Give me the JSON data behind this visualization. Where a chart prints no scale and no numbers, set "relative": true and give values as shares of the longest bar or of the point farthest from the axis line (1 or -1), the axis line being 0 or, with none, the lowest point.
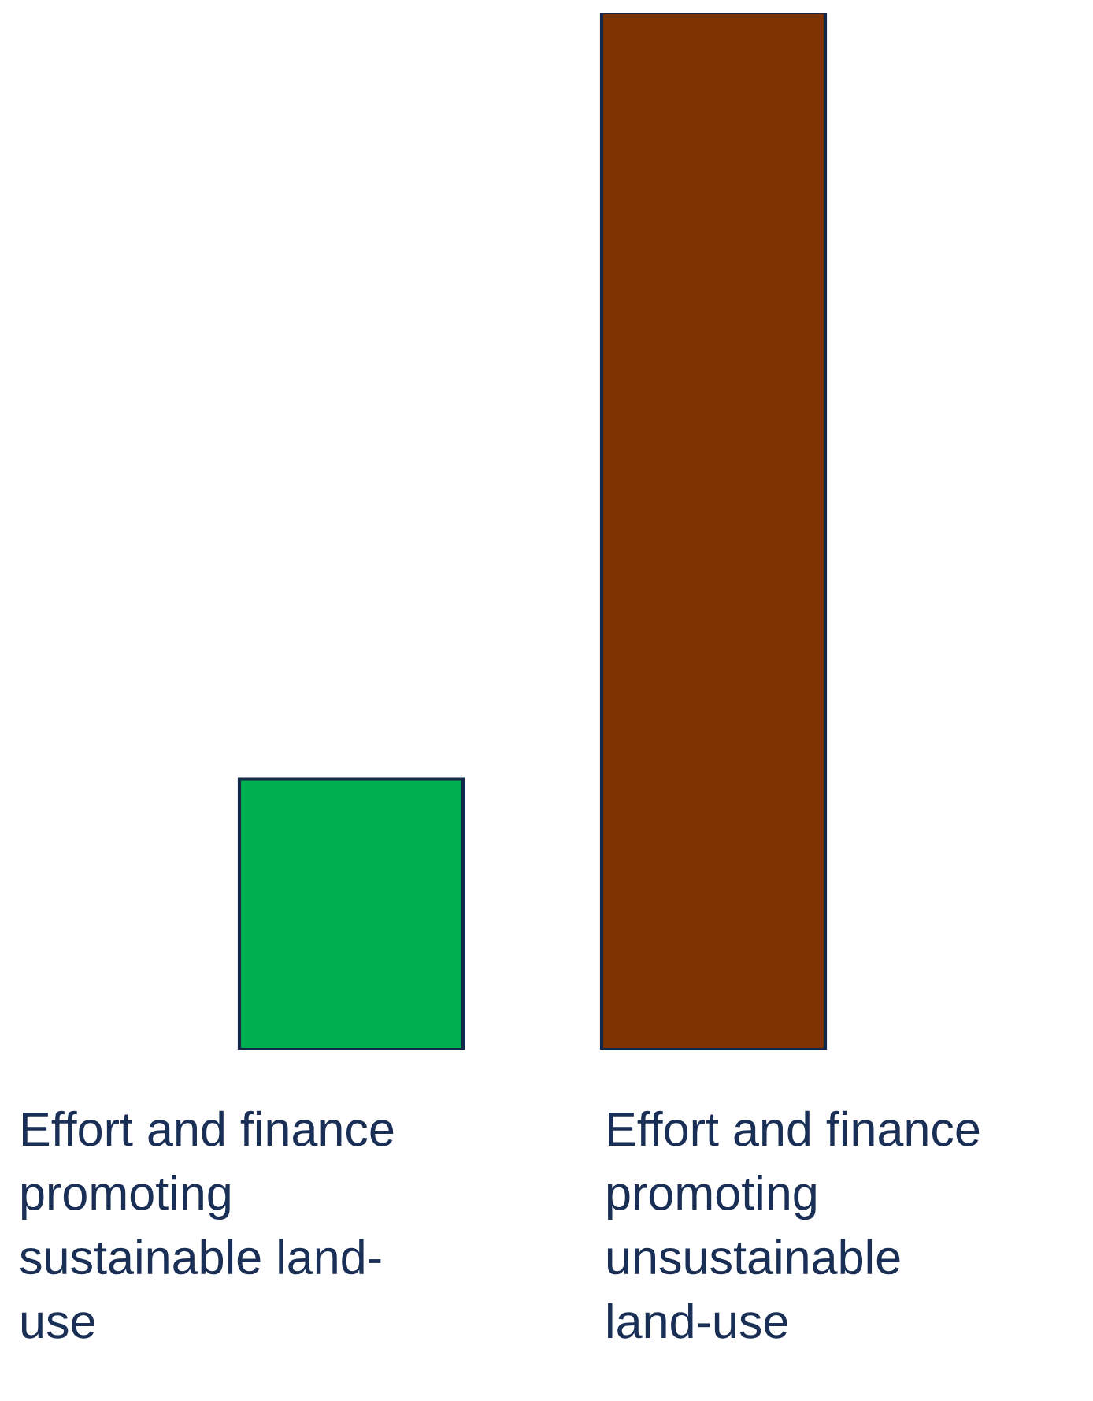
{
  "chart_data": {
    "type": "bar",
    "relative": true,
    "categories": [
      "Effort and finance\npromoting\nsustainable land-\nuse",
      "Effort and finance\npromoting\nunsustainable\nland-use"
    ],
    "values": [
      0.261,
      1
    ],
    "colors": [
      "#00b050",
      "#7f3300"
    ],
    "grid": false,
    "legend": false
  }
}
